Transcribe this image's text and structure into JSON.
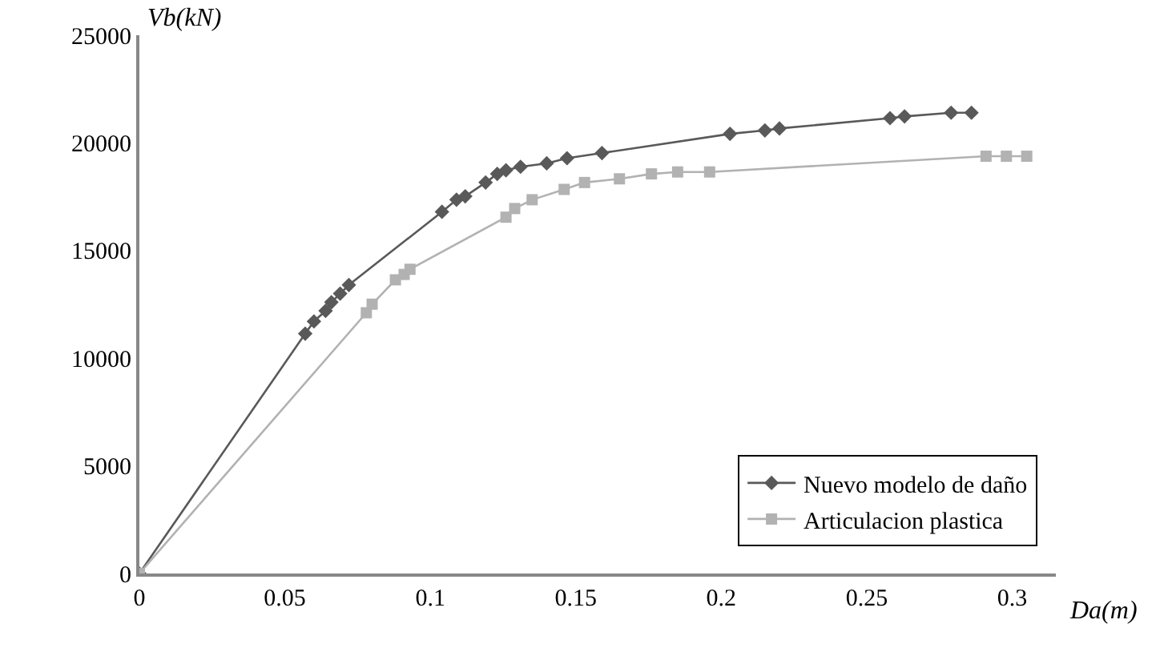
{
  "chart_data": {
    "type": "line",
    "xlabel": "Da(m)",
    "ylabel": "Vb(kN)",
    "xlim": [
      0,
      0.315
    ],
    "xticks": [
      0,
      0.05,
      0.1,
      0.15,
      0.2,
      0.25,
      0.3
    ],
    "ylim": [
      0,
      25000
    ],
    "yticks": [
      0,
      5000,
      10000,
      15000,
      20000,
      25000
    ],
    "grid": false,
    "legend": "bottom right",
    "series": [
      {
        "name": "Nuevo modelo de daño",
        "color": "#595959",
        "marker": "diamond",
        "x": [
          0,
          0.057,
          0.06,
          0.064,
          0.066,
          0.069,
          0.072,
          0.104,
          0.109,
          0.112,
          0.119,
          0.123,
          0.126,
          0.131,
          0.14,
          0.147,
          0.159,
          0.203,
          0.215,
          0.22,
          0.258,
          0.263,
          0.279,
          0.286
        ],
        "values": [
          0,
          11140,
          11710,
          12200,
          12600,
          13000,
          13400,
          16800,
          17360,
          17520,
          18160,
          18560,
          18730,
          18890,
          19050,
          19290,
          19530,
          20420,
          20580,
          20670,
          21150,
          21230,
          21400,
          21400
        ]
      },
      {
        "name": "Articulacion plastica",
        "color": "#b2b2b2",
        "marker": "square",
        "x": [
          0,
          0.078,
          0.08,
          0.088,
          0.091,
          0.093,
          0.126,
          0.129,
          0.135,
          0.146,
          0.153,
          0.165,
          0.176,
          0.185,
          0.196,
          0.291,
          0.298,
          0.305
        ],
        "values": [
          0,
          12110,
          12510,
          13640,
          13890,
          14130,
          16550,
          16950,
          17360,
          17840,
          18160,
          18330,
          18560,
          18650,
          18650,
          19380,
          19380,
          19380
        ]
      }
    ]
  }
}
